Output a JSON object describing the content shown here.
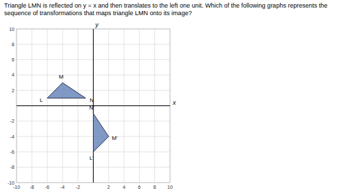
{
  "chart_data": {
    "type": "polygon",
    "title": "Triangle LMN is reflected on y = x and then translates to the left one unit. Which of the following graphs represents the",
    "subtitle": "sequence of transformations that maps triangle LMN onto its image?",
    "x_label": "x",
    "y_label": "y",
    "xlim": [
      -10,
      10
    ],
    "ylim": [
      -10,
      10
    ],
    "xticks": [
      -10,
      -8,
      -6,
      -4,
      -2,
      2,
      4,
      6,
      8,
      10
    ],
    "yticks": [
      -10,
      -8,
      -6,
      -4,
      -2,
      2,
      4,
      6,
      8,
      10
    ],
    "grid": true,
    "series": [
      {
        "x": [
          -6,
          -4,
          -1
        ],
        "values": [
          1,
          3,
          1
        ],
        "labels": [
          "L",
          "M",
          "N"
        ],
        "color": "#6080b8"
      },
      {
        "x": [
          0,
          2,
          0
        ],
        "values": [
          -6,
          -4,
          -1
        ],
        "labels": [
          "L'",
          "M'",
          "N'"
        ],
        "color": "#6080b8"
      }
    ]
  }
}
